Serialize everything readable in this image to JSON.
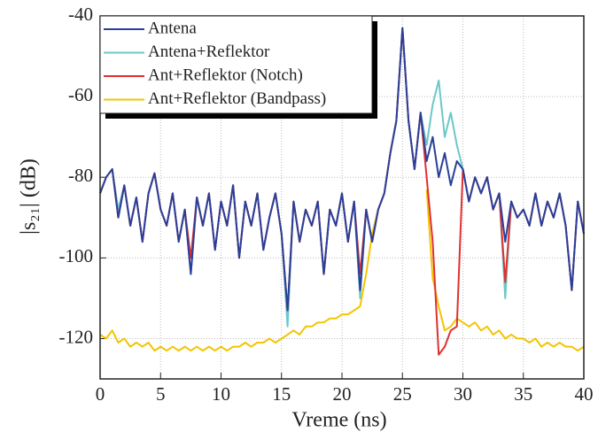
{
  "chart_data": {
    "type": "line",
    "x": [
      0,
      0.5,
      1,
      1.5,
      2,
      2.5,
      3,
      3.5,
      4,
      4.5,
      5,
      5.5,
      6,
      6.5,
      7,
      7.5,
      8,
      8.5,
      9,
      9.5,
      10,
      10.5,
      11,
      11.5,
      12,
      12.5,
      13,
      13.5,
      14,
      14.5,
      15,
      15.5,
      16,
      16.5,
      17,
      17.5,
      18,
      18.5,
      19,
      19.5,
      20,
      20.5,
      21,
      21.5,
      22,
      22.5,
      23,
      23.5,
      24,
      24.5,
      25,
      25.5,
      26,
      26.5,
      27,
      27.5,
      28,
      28.5,
      29,
      29.5,
      30,
      30.5,
      31,
      31.5,
      32,
      32.5,
      33,
      33.5,
      34,
      34.5,
      35,
      35.5,
      36,
      36.5,
      37,
      37.5,
      38,
      38.5,
      39,
      39.5,
      40
    ],
    "series": [
      {
        "name": "Antena",
        "color": "#2b3f9a",
        "values": [
          -84,
          -80,
          -78,
          -90,
          -82,
          -92,
          -85,
          -96,
          -84,
          -79,
          -88,
          -92,
          -84,
          -96,
          -88,
          -104,
          -85,
          -92,
          -84,
          -98,
          -86,
          -92,
          -82,
          -100,
          -86,
          -92,
          -84,
          -98,
          -90,
          -84,
          -94,
          -113,
          -86,
          -96,
          -88,
          -92,
          -86,
          -104,
          -88,
          -92,
          -84,
          -96,
          -86,
          -108,
          -88,
          -96,
          -88,
          -84,
          -74,
          -66,
          -43,
          -66,
          -78,
          -64,
          -76,
          -70,
          -80,
          -74,
          -82,
          -76,
          -78,
          -86,
          -80,
          -84,
          -80,
          -88,
          -84,
          -96,
          -86,
          -90,
          -88,
          -92,
          -84,
          -92,
          -86,
          -90,
          -84,
          -92,
          -108,
          -86,
          -94
        ]
      },
      {
        "name": "Antena+Reflektor",
        "color": "#6cc8c8",
        "values": [
          -84,
          -80,
          -78,
          -88,
          -82,
          -92,
          -85,
          -96,
          -84,
          -79,
          -88,
          -92,
          -84,
          -96,
          -88,
          -104,
          -85,
          -92,
          -84,
          -98,
          -86,
          -92,
          -82,
          -100,
          -86,
          -92,
          -84,
          -98,
          -90,
          -84,
          -94,
          -117,
          -86,
          -96,
          -88,
          -92,
          -86,
          -104,
          -88,
          -92,
          -84,
          -96,
          -86,
          -110,
          -88,
          -96,
          -88,
          -84,
          -74,
          -66,
          -43,
          -66,
          -78,
          -64,
          -72,
          -62,
          -56,
          -70,
          -64,
          -72,
          -78,
          -86,
          -80,
          -84,
          -80,
          -88,
          -84,
          -110,
          -86,
          -90,
          -88,
          -92,
          -84,
          -92,
          -86,
          -90,
          -84,
          -92,
          -108,
          -86,
          -94
        ]
      },
      {
        "name": "Ant+Reflektor (Notch)",
        "color": "#e03030",
        "values": [
          -84,
          -80,
          -78,
          -90,
          -82,
          -92,
          -85,
          -96,
          -84,
          -79,
          -88,
          -92,
          -84,
          -96,
          -88,
          -100,
          -85,
          -92,
          -84,
          -98,
          -86,
          -92,
          -82,
          -100,
          -86,
          -92,
          -84,
          -98,
          -90,
          -84,
          -94,
          -113,
          -86,
          -96,
          -88,
          -92,
          -86,
          -104,
          -88,
          -92,
          -84,
          -96,
          -86,
          -104,
          -88,
          -96,
          -88,
          -84,
          -74,
          -66,
          -43,
          -66,
          -78,
          -64,
          -80,
          -96,
          -124,
          -122,
          -118,
          -117,
          -78,
          -86,
          -80,
          -84,
          -80,
          -88,
          -84,
          -106,
          -86,
          -90,
          -88,
          -92,
          -84,
          -92,
          -86,
          -90,
          -84,
          -92,
          -108,
          -86,
          -94
        ]
      },
      {
        "name": "Ant+Reflektor (Bandpass)",
        "color": "#f2c500",
        "values": [
          -119,
          -120,
          -118,
          -121,
          -120,
          -122,
          -121,
          -122,
          -121,
          -123,
          -122,
          -123,
          -122,
          -123,
          -122,
          -123,
          -122,
          -123,
          -122,
          -123,
          -122,
          -123,
          -122,
          -122,
          -121,
          -122,
          -121,
          -121,
          -120,
          -121,
          -120,
          -119,
          -118,
          -119,
          -117,
          -117,
          -116,
          -116,
          -115,
          -115,
          -114,
          -114,
          -113,
          -112,
          -104,
          -94,
          -88,
          null,
          null,
          null,
          null,
          null,
          null,
          null,
          -83,
          -105,
          -112,
          -118,
          -117,
          -115,
          -116,
          -117,
          -116,
          -118,
          -117,
          -119,
          -118,
          -120,
          -119,
          -120,
          -120,
          -121,
          -120,
          -122,
          -121,
          -122,
          -121,
          -122,
          -122,
          -123,
          -122
        ]
      }
    ],
    "x_label": "Vreme (ns)",
    "y_label": "|s₂₁| (dB)",
    "xlim": [
      0,
      40
    ],
    "xticks": [
      0,
      5,
      10,
      15,
      20,
      25,
      30,
      35,
      40
    ],
    "ylim": [
      -130,
      -40
    ],
    "yticks": [
      -120,
      -100,
      -80,
      -60,
      -40
    ],
    "grid": true
  }
}
